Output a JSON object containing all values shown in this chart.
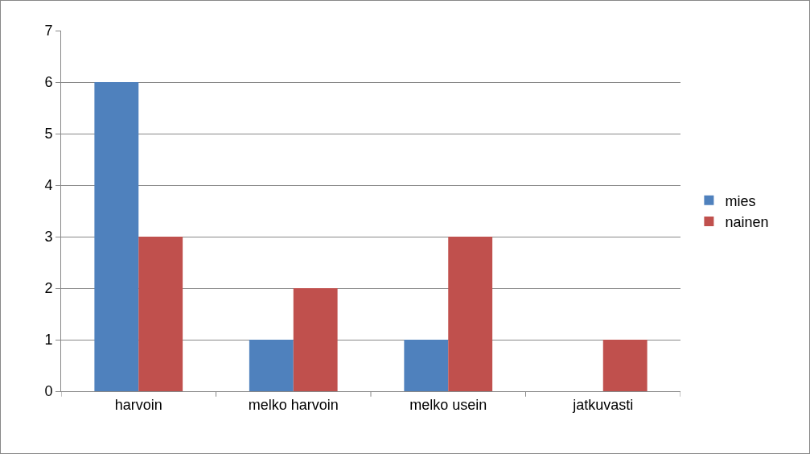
{
  "chart_data": {
    "type": "bar",
    "categories": [
      "harvoin",
      "melko harvoin",
      "melko usein",
      "jatkuvasti"
    ],
    "series": [
      {
        "name": "mies",
        "color": "#4f81bd",
        "values": [
          6,
          1,
          1,
          0
        ]
      },
      {
        "name": "nainen",
        "color": "#c0504d",
        "values": [
          3,
          2,
          3,
          1
        ]
      }
    ],
    "ylim": [
      0,
      7
    ],
    "yticks": [
      0,
      1,
      2,
      3,
      4,
      5,
      6,
      7
    ],
    "grid": "y",
    "legend": "right"
  }
}
